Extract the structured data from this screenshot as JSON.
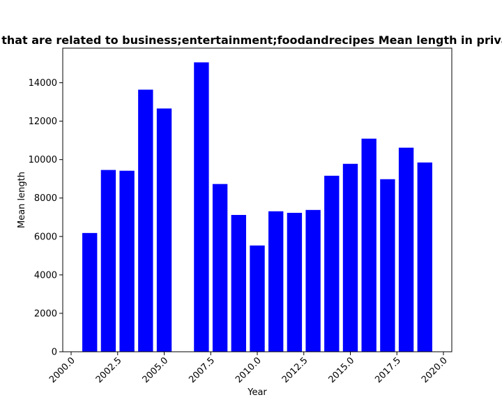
{
  "chart_data": {
    "type": "bar",
    "title": "Websites that are related to business;entertainment;foodandrecipes Mean length in privacy policies",
    "xlabel": "Year",
    "ylabel": "Mean length",
    "x": [
      2001,
      2002,
      2003,
      2004,
      2005,
      2007,
      2008,
      2009,
      2010,
      2011,
      2012,
      2013,
      2014,
      2015,
      2016,
      2017,
      2018,
      2019
    ],
    "values": [
      6180,
      9460,
      9420,
      13640,
      12660,
      15060,
      8730,
      7120,
      5530,
      7310,
      7230,
      7380,
      9160,
      9780,
      11090,
      8980,
      10620,
      9850
    ],
    "xlim": [
      1999.55,
      2020.45
    ],
    "ylim": [
      0,
      15800
    ],
    "xticks": [
      "2000.0",
      "2002.5",
      "2005.0",
      "2007.5",
      "2010.0",
      "2012.5",
      "2015.0",
      "2017.5",
      "2020.0"
    ],
    "yticks": [
      "0",
      "2000",
      "4000",
      "6000",
      "8000",
      "10000",
      "12000",
      "14000"
    ],
    "bar_color": "#0000ff",
    "grid": false,
    "legend": "none"
  }
}
